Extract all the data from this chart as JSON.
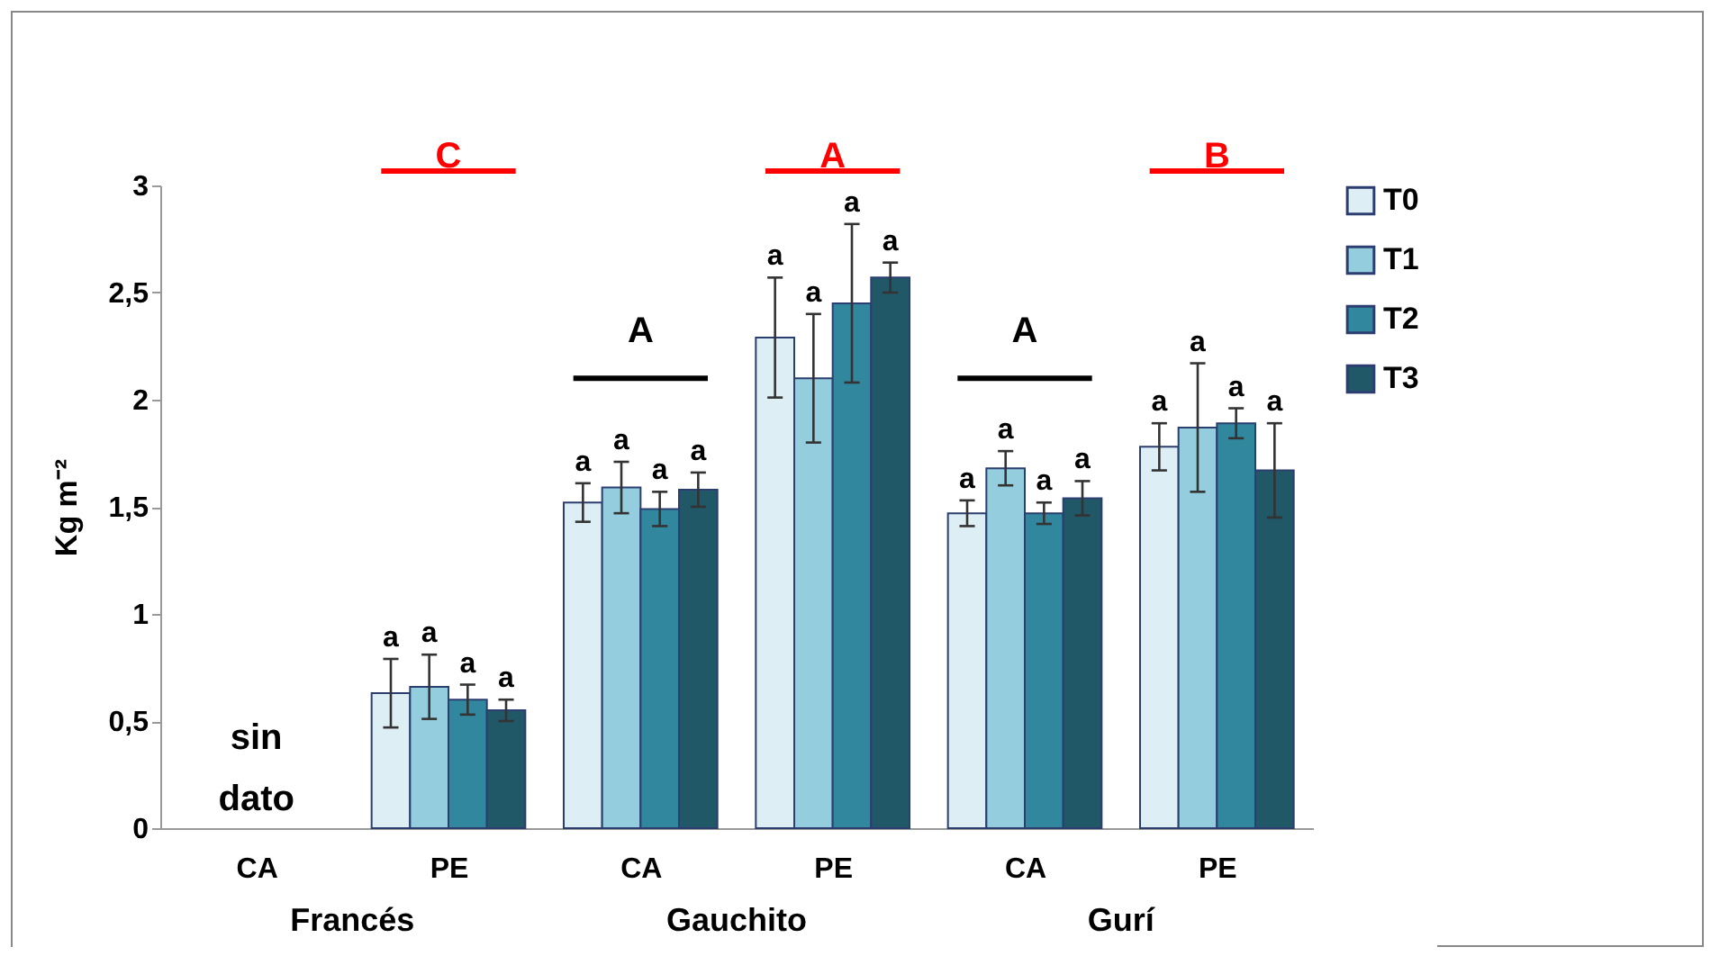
{
  "chart_data": {
    "type": "bar",
    "ylabel": "Kg m⁻²",
    "categories": [
      "CA",
      "PE",
      "CA",
      "PE",
      "CA",
      "PE"
    ],
    "series": [
      {
        "name": "T0",
        "color": "#ddeef4",
        "values": [
          null,
          0.63,
          1.52,
          2.29,
          1.47,
          1.78
        ],
        "errors": [
          null,
          0.16,
          0.09,
          0.28,
          0.06,
          0.11
        ],
        "value_labels": [
          null,
          "a",
          "a",
          "a",
          "a",
          "a"
        ]
      },
      {
        "name": "T1",
        "color": "#94cddd",
        "values": [
          null,
          0.66,
          1.59,
          2.1,
          1.68,
          1.87
        ],
        "errors": [
          null,
          0.15,
          0.12,
          0.3,
          0.08,
          0.3
        ],
        "value_labels": [
          null,
          "a",
          "a",
          "a",
          "a",
          "a"
        ]
      },
      {
        "name": "T2",
        "color": "#31879d",
        "values": [
          null,
          0.6,
          1.49,
          2.45,
          1.47,
          1.89
        ],
        "errors": [
          null,
          0.07,
          0.08,
          0.37,
          0.05,
          0.07
        ],
        "value_labels": [
          null,
          "a",
          "a",
          "a",
          "a",
          "a"
        ]
      },
      {
        "name": "T3",
        "color": "#215868",
        "values": [
          null,
          0.55,
          1.58,
          2.57,
          1.54,
          1.67
        ],
        "errors": [
          null,
          0.05,
          0.08,
          0.07,
          0.08,
          0.22
        ],
        "value_labels": [
          null,
          "a",
          "a",
          "a",
          "a",
          "a"
        ]
      }
    ],
    "ylim": [
      0,
      3
    ],
    "yticks": [
      0,
      {
        "value": 0.5,
        "label": "0,5"
      },
      1,
      {
        "value": 1.5,
        "label": "1,5"
      },
      2,
      {
        "value": 2.5,
        "label": "2,5"
      },
      3
    ],
    "annotations": [
      "C",
      "A",
      "A",
      "A",
      "B",
      "sin dato",
      "Francés",
      "Gauchito",
      "Gurí"
    ],
    "legend": "right",
    "grid": false
  }
}
